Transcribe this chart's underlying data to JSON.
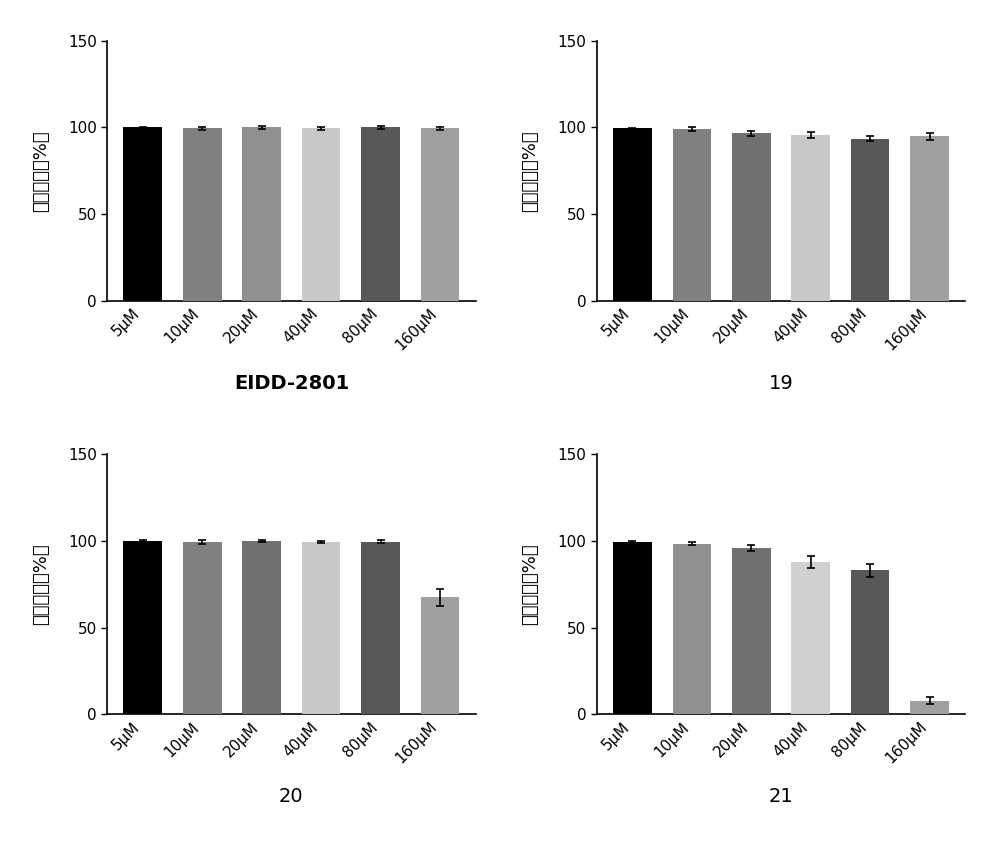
{
  "subplots": [
    {
      "title": "EIDD-2801",
      "title_bold": true,
      "values": [
        100.0,
        99.5,
        100.0,
        99.5,
        100.0,
        99.5
      ],
      "errors": [
        0.3,
        1.0,
        0.8,
        0.8,
        0.8,
        0.8
      ],
      "bar_colors": [
        "#000000",
        "#808080",
        "#909090",
        "#c8c8c8",
        "#585858",
        "#a0a0a0"
      ]
    },
    {
      "title": "19",
      "title_bold": false,
      "values": [
        99.5,
        99.0,
        96.5,
        95.5,
        93.5,
        95.0
      ],
      "errors": [
        0.3,
        1.2,
        1.5,
        1.8,
        1.5,
        2.0
      ],
      "bar_colors": [
        "#000000",
        "#808080",
        "#707070",
        "#c8c8c8",
        "#585858",
        "#a0a0a0"
      ]
    },
    {
      "title": "20",
      "title_bold": false,
      "values": [
        100.0,
        99.5,
        100.0,
        99.5,
        99.5,
        67.5
      ],
      "errors": [
        0.3,
        1.0,
        0.5,
        0.5,
        0.8,
        5.0
      ],
      "bar_colors": [
        "#000000",
        "#808080",
        "#707070",
        "#c8c8c8",
        "#585858",
        "#a0a0a0"
      ]
    },
    {
      "title": "21",
      "title_bold": false,
      "values": [
        99.5,
        98.5,
        96.0,
        88.0,
        83.0,
        8.0
      ],
      "errors": [
        0.5,
        1.0,
        1.5,
        3.5,
        4.0,
        2.0
      ],
      "bar_colors": [
        "#000000",
        "#909090",
        "#707070",
        "#d0d0d0",
        "#585858",
        "#a0a0a0"
      ]
    }
  ],
  "categories": [
    "5μM",
    "10μM",
    "20μM",
    "40μM",
    "80μM",
    "160μM"
  ],
  "ylabel": "细胞活力（%）",
  "ylim": [
    0,
    150
  ],
  "yticks": [
    0,
    50,
    100,
    150
  ],
  "bar_width": 0.65,
  "figsize": [
    10.0,
    8.41
  ],
  "dpi": 100,
  "background_color": "#ffffff",
  "ylabel_fontsize": 13,
  "title_fontsize": 14,
  "tick_fontsize": 11
}
